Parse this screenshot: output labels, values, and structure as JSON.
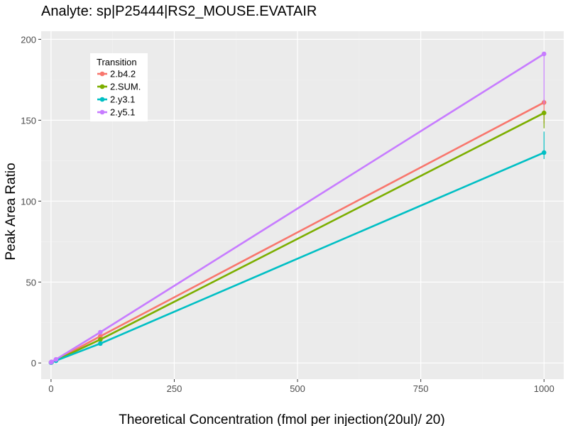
{
  "chart_data": {
    "type": "line",
    "title": "Analyte: sp|P25444|RS2_MOUSE.EVATAIR",
    "xlabel": "Theoretical Concentration (fmol per injection(20ul)/ 20)",
    "ylabel": "Peak Area Ratio",
    "xlim": [
      -20,
      1040
    ],
    "ylim": [
      -10,
      205
    ],
    "x_ticks": [
      0,
      250,
      500,
      750,
      1000
    ],
    "y_ticks": [
      0,
      50,
      100,
      150,
      200
    ],
    "x_tick_labels": [
      "0",
      "250",
      "500",
      "750",
      "1000"
    ],
    "y_tick_labels": [
      "0",
      "50",
      "100",
      "150",
      "200"
    ],
    "grid": true,
    "legend_title": "Transition",
    "legend_position": "top-left",
    "x": [
      0,
      1,
      10,
      100,
      1000
    ],
    "series": [
      {
        "name": "2.b4.2",
        "color": "#F8766D",
        "values": [
          0.3,
          0.5,
          1.8,
          16.5,
          161.0
        ],
        "error_high": [
          null,
          null,
          null,
          null,
          163.0
        ],
        "error_low": [
          null,
          null,
          null,
          null,
          148.0
        ]
      },
      {
        "name": "2.SUM.",
        "color": "#7CAE00",
        "values": [
          0.3,
          0.5,
          1.6,
          14.5,
          154.5
        ],
        "error_high": [
          null,
          null,
          null,
          null,
          156.0
        ],
        "error_low": [
          null,
          null,
          null,
          null,
          145.0
        ]
      },
      {
        "name": "2.y3.1",
        "color": "#00BFC4",
        "values": [
          0.2,
          0.4,
          1.4,
          12.0,
          130.0
        ],
        "error_high": [
          null,
          null,
          null,
          null,
          143.0
        ],
        "error_low": [
          null,
          null,
          null,
          null,
          126.0
        ]
      },
      {
        "name": "2.y5.1",
        "color": "#C77CFF",
        "values": [
          0.4,
          0.7,
          2.2,
          19.0,
          191.0
        ],
        "error_high": [
          null,
          null,
          null,
          null,
          192.0
        ],
        "error_low": [
          null,
          null,
          null,
          null,
          160.0
        ]
      }
    ]
  }
}
